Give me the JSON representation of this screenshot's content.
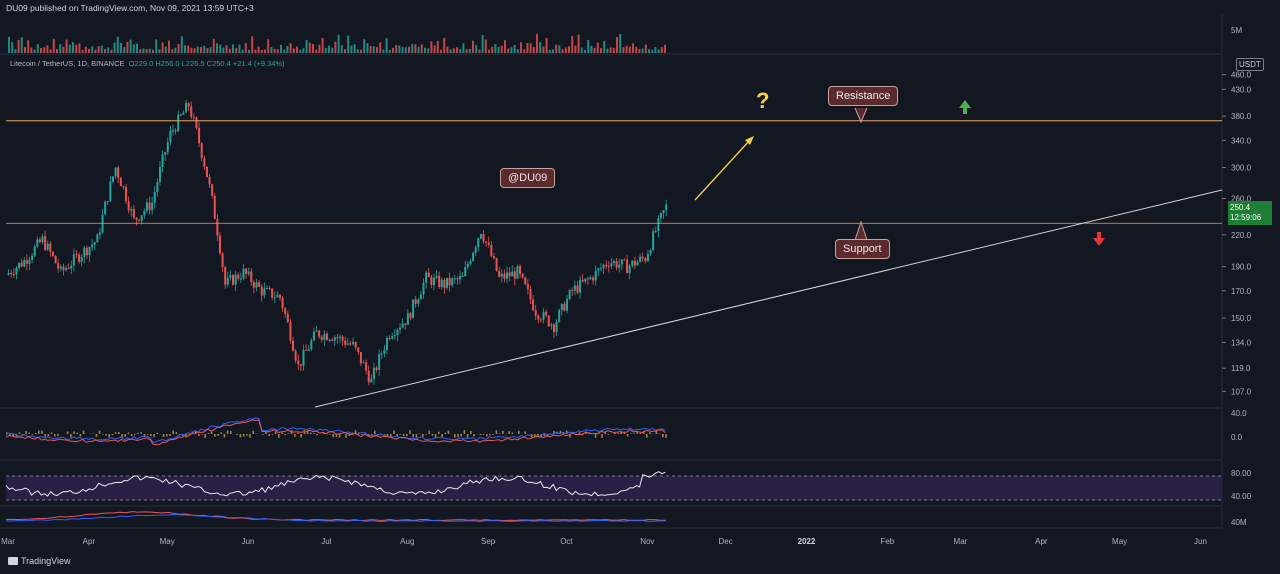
{
  "header": "DU09 published on TradingView.com, Nov 09, 2021 13:59 UTC+3",
  "symbol": {
    "name": "Litecoin / TetherUS, 1D, BINANCE",
    "ohlc": "O229.0 H256.0 L226.5 C250.4 +21.4 (+9.34%)"
  },
  "unit": "USDT",
  "price_tag": {
    "price": "250.4",
    "countdown": "12:59:06"
  },
  "annotations": {
    "resistance": "Resistance",
    "support": "Support",
    "author": "@DU09",
    "question": "?"
  },
  "footer": "TradingView",
  "colors": {
    "up": "#26a69a",
    "down": "#ef5350",
    "line": "#e6a36b",
    "rsi_fill": "#2a1f45"
  },
  "chart_data": [
    {
      "type": "candlestick",
      "title": "Litecoin / TetherUS, 1D, BINANCE",
      "y_ticks": [
        "460.0",
        "430.0",
        "380.0",
        "340.0",
        "300.0",
        "260.0",
        "220.0",
        "190.0",
        "170.0",
        "150.0",
        "134.0",
        "119.0",
        "107.0"
      ],
      "x_ticks": [
        "Mar",
        "Apr",
        "May",
        "Jun",
        "Jul",
        "Aug",
        "Sep",
        "Oct",
        "Nov",
        "Dec",
        "2022",
        "Feb",
        "Mar",
        "Apr",
        "May",
        "Jun"
      ],
      "x_range": [
        "2021-03-01",
        "2022-06-10"
      ],
      "y_range": [
        100,
        470
      ],
      "log_scale": true,
      "key_levels": {
        "resistance": 372,
        "support": 232
      },
      "points": [
        [
          "2021-03-01",
          183
        ],
        [
          "2021-03-08",
          195
        ],
        [
          "2021-03-15",
          215
        ],
        [
          "2021-03-22",
          185
        ],
        [
          "2021-03-29",
          200
        ],
        [
          "2021-04-05",
          215
        ],
        [
          "2021-04-12",
          300
        ],
        [
          "2021-04-19",
          235
        ],
        [
          "2021-04-26",
          255
        ],
        [
          "2021-05-03",
          350
        ],
        [
          "2021-05-10",
          400
        ],
        [
          "2021-05-17",
          290
        ],
        [
          "2021-05-24",
          175
        ],
        [
          "2021-05-31",
          185
        ],
        [
          "2021-06-07",
          170
        ],
        [
          "2021-06-14",
          165
        ],
        [
          "2021-06-21",
          120
        ],
        [
          "2021-06-28",
          140
        ],
        [
          "2021-07-05",
          138
        ],
        [
          "2021-07-12",
          132
        ],
        [
          "2021-07-19",
          112
        ],
        [
          "2021-07-26",
          140
        ],
        [
          "2021-08-02",
          150
        ],
        [
          "2021-08-09",
          180
        ],
        [
          "2021-08-16",
          175
        ],
        [
          "2021-08-23",
          180
        ],
        [
          "2021-08-30",
          225
        ],
        [
          "2021-09-06",
          180
        ],
        [
          "2021-09-13",
          185
        ],
        [
          "2021-09-20",
          155
        ],
        [
          "2021-09-27",
          145
        ],
        [
          "2021-10-04",
          170
        ],
        [
          "2021-10-11",
          180
        ],
        [
          "2021-10-18",
          195
        ],
        [
          "2021-10-25",
          190
        ],
        [
          "2021-11-01",
          198
        ],
        [
          "2021-11-09",
          250.4
        ]
      ]
    },
    {
      "type": "line",
      "title": "Volume",
      "y_ticks": [
        "5M"
      ]
    },
    {
      "type": "line",
      "title": "MACD",
      "y_ticks": [
        "40.0",
        "0.0"
      ]
    },
    {
      "type": "line",
      "title": "RSI",
      "y_ticks": [
        "80.00",
        "40.00"
      ]
    },
    {
      "type": "line",
      "title": "Volume MA",
      "y_ticks": [
        "40M"
      ]
    }
  ]
}
